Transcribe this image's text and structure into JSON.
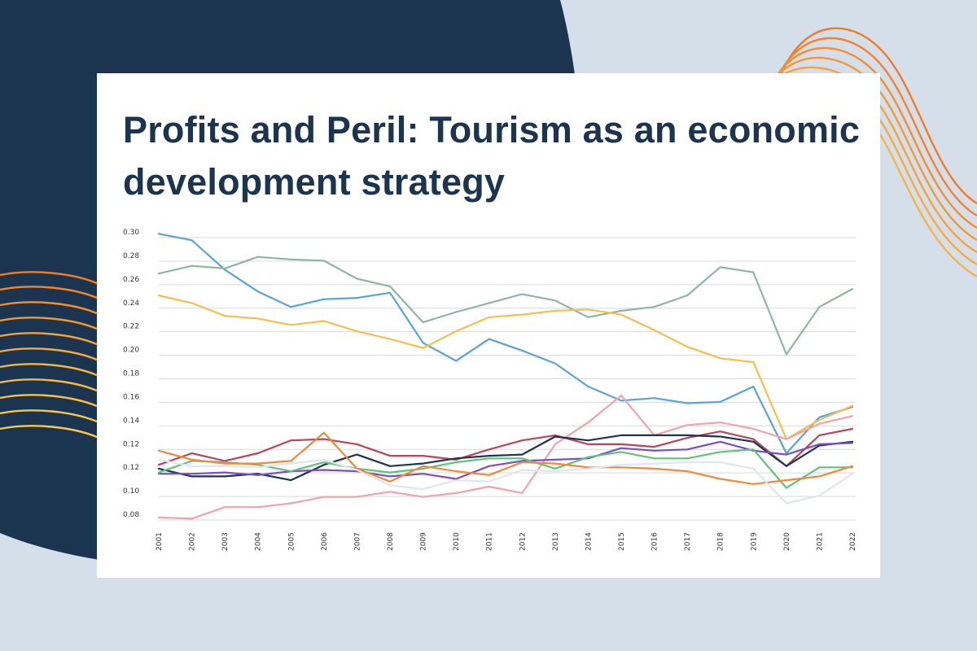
{
  "title": "Profits and Peril: Tourism as an economic development strategy",
  "chart_data": {
    "type": "line",
    "title": "Profits and Peril: Tourism as an economic development strategy",
    "xlabel": "",
    "ylabel": "",
    "ylim": [
      0.08,
      0.3
    ],
    "grid": true,
    "yticks": [
      "0.08",
      "0.10",
      "0.12",
      "0.12",
      "0.14",
      "0.16",
      "0.18",
      "0.20",
      "0.22",
      "0.24",
      "0.26",
      "0.28",
      "0.30"
    ],
    "x": [
      "2001",
      "2002",
      "2003",
      "2004",
      "2005",
      "2006",
      "2007",
      "2008",
      "2009",
      "2010",
      "2011",
      "2012",
      "2013",
      "2014",
      "2015",
      "2016",
      "2017",
      "2018",
      "2019",
      "2020",
      "2021",
      "2022"
    ],
    "series": [
      {
        "color": "#5aa3d6",
        "values": [
          0.303,
          0.298,
          0.275,
          0.258,
          0.246,
          0.252,
          0.253,
          0.257,
          0.218,
          0.204,
          0.221,
          0.212,
          0.202,
          0.184,
          0.173,
          0.175,
          0.171,
          0.172,
          0.184,
          0.132,
          0.16,
          0.168
        ]
      },
      {
        "color": "#8fb5a4",
        "values": [
          0.272,
          0.278,
          0.276,
          0.285,
          0.283,
          0.282,
          0.268,
          0.262,
          0.234,
          0.242,
          0.249,
          0.256,
          0.251,
          0.238,
          0.243,
          0.246,
          0.255,
          0.277,
          0.273,
          0.209,
          0.246,
          0.26
        ]
      },
      {
        "color": "#f4bf4f",
        "values": [
          0.255,
          0.249,
          0.239,
          0.237,
          0.232,
          0.235,
          0.227,
          0.221,
          0.214,
          0.227,
          0.238,
          0.24,
          0.243,
          0.244,
          0.24,
          0.228,
          0.215,
          0.206,
          0.203,
          0.143,
          0.158,
          0.169
        ]
      },
      {
        "color": "#f0a3ab",
        "values": [
          0.082,
          0.081,
          0.09,
          0.09,
          0.093,
          0.098,
          0.098,
          0.102,
          0.098,
          0.101,
          0.106,
          0.101,
          0.139,
          0.156,
          0.177,
          0.146,
          0.154,
          0.156,
          0.151,
          0.143,
          0.155,
          0.161
        ]
      },
      {
        "color": "#b8465a",
        "values": [
          0.123,
          0.132,
          0.126,
          0.132,
          0.142,
          0.143,
          0.139,
          0.13,
          0.13,
          0.127,
          0.135,
          0.142,
          0.146,
          0.139,
          0.139,
          0.137,
          0.144,
          0.149,
          0.143,
          0.122,
          0.146,
          0.151
        ]
      },
      {
        "color": "#1b3550",
        "values": [
          0.12,
          0.114,
          0.114,
          0.116,
          0.111,
          0.123,
          0.131,
          0.122,
          0.124,
          0.128,
          0.13,
          0.131,
          0.145,
          0.142,
          0.146,
          0.146,
          0.146,
          0.145,
          0.141,
          0.122,
          0.138,
          0.141
        ]
      },
      {
        "color": "#7a4ec4",
        "values": [
          0.116,
          0.116,
          0.117,
          0.115,
          0.118,
          0.119,
          0.118,
          0.114,
          0.116,
          0.112,
          0.122,
          0.126,
          0.127,
          0.128,
          0.136,
          0.134,
          0.135,
          0.141,
          0.134,
          0.131,
          0.139,
          0.14
        ]
      },
      {
        "color": "#5fc47a",
        "values": [
          0.117,
          0.126,
          0.125,
          0.123,
          0.118,
          0.125,
          0.12,
          0.117,
          0.12,
          0.125,
          0.128,
          0.128,
          0.12,
          0.129,
          0.133,
          0.128,
          0.128,
          0.133,
          0.135,
          0.105,
          0.121,
          0.121
        ]
      },
      {
        "color": "#ee8a3a",
        "values": [
          0.134,
          0.127,
          0.124,
          0.124,
          0.126,
          0.148,
          0.12,
          0.11,
          0.122,
          0.118,
          0.115,
          0.125,
          0.124,
          0.121,
          0.121,
          0.12,
          0.118,
          0.112,
          0.108,
          0.111,
          0.114,
          0.122
        ]
      },
      {
        "color": "#dfe6ef",
        "values": [
          0.127,
          0.122,
          0.122,
          0.121,
          0.124,
          0.127,
          0.119,
          0.107,
          0.104,
          0.111,
          0.11,
          0.119,
          0.118,
          0.12,
          0.123,
          0.124,
          0.125,
          0.125,
          0.12,
          0.093,
          0.099,
          0.116
        ]
      }
    ]
  }
}
